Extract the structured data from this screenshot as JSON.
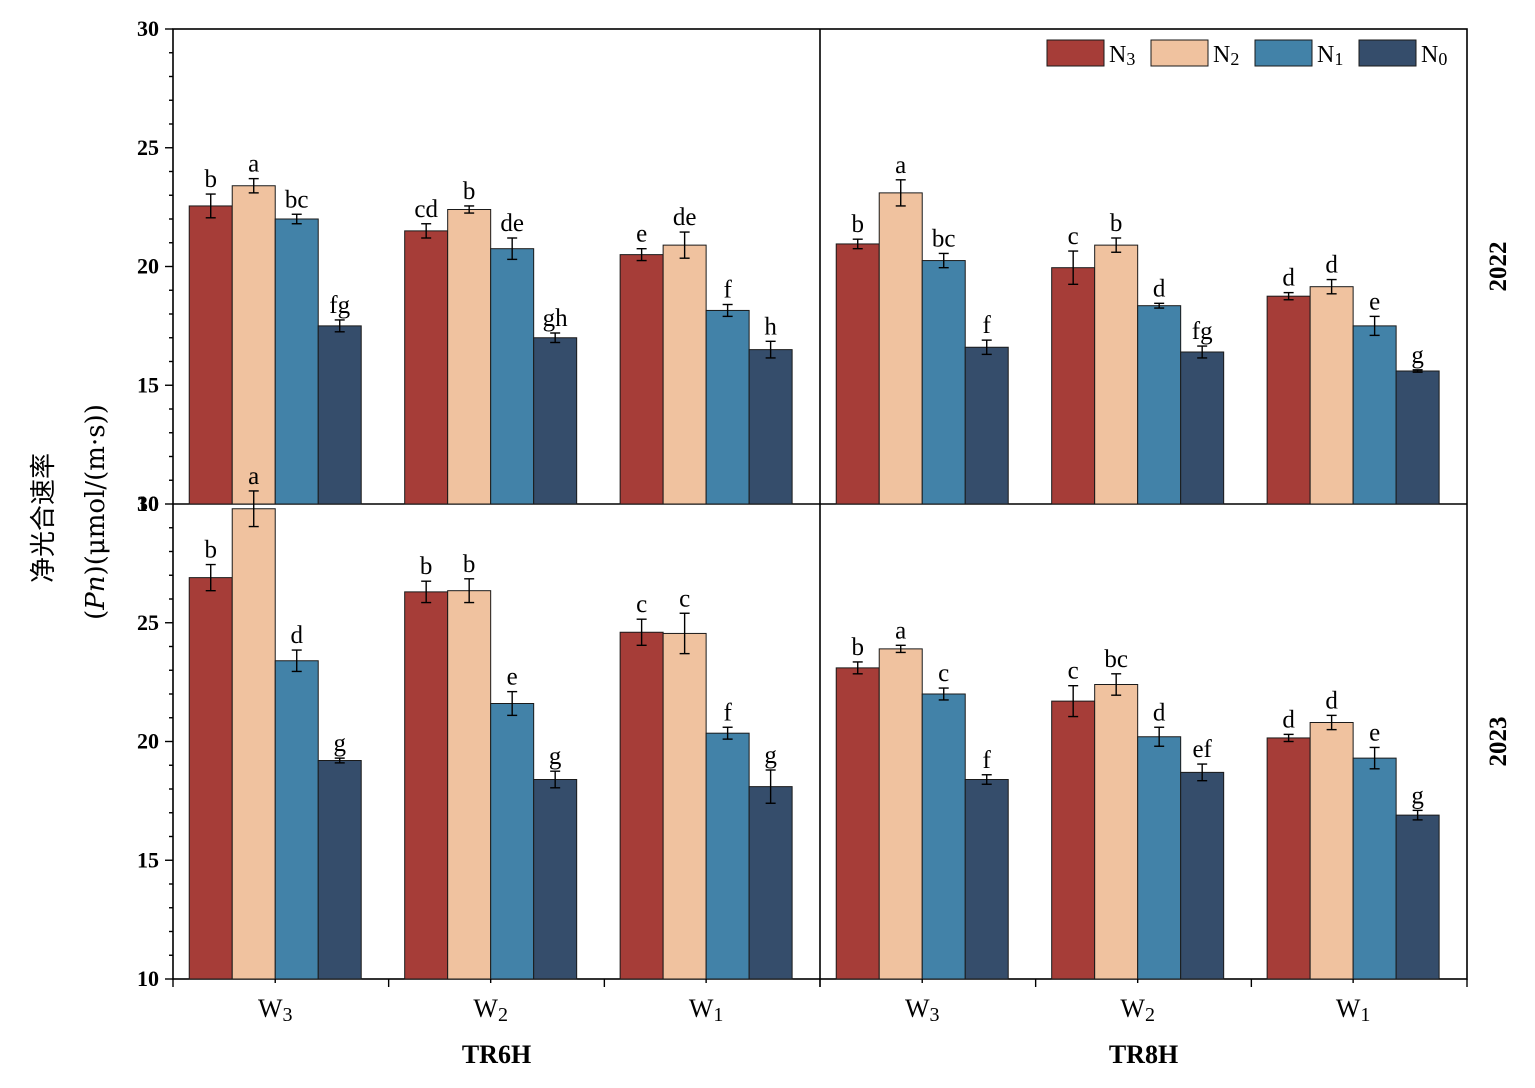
{
  "chart_data": {
    "type": "bar",
    "ylabel_line1": "净光合速率",
    "ylabel_line2_italic": "Pn",
    "ylabel_line2_unit": "(μmol/(m·s))",
    "ylim": [
      10,
      30
    ],
    "yticks": [
      "10",
      "15",
      "20",
      "25",
      "30"
    ],
    "legend_position": "top-right",
    "series": [
      {
        "name": "N",
        "sub": "3",
        "color": "#a63d38"
      },
      {
        "name": "N",
        "sub": "2",
        "color": "#f0c29f"
      },
      {
        "name": "N",
        "sub": "1",
        "color": "#4282a8"
      },
      {
        "name": "N",
        "sub": "0",
        "color": "#354d6b"
      }
    ],
    "categories": [
      {
        "name": "W",
        "sub": "3"
      },
      {
        "name": "W",
        "sub": "2"
      },
      {
        "name": "W",
        "sub": "1"
      }
    ],
    "groups": [
      "TR6H",
      "TR8H"
    ],
    "years": [
      "2022",
      "2023"
    ],
    "panels": [
      {
        "year": "2022",
        "group": "TR6H",
        "values": [
          [
            22.55,
            23.4,
            22.0,
            17.5
          ],
          [
            21.5,
            22.4,
            20.75,
            17.0
          ],
          [
            20.5,
            20.9,
            18.15,
            16.5
          ]
        ],
        "errors": [
          [
            0.5,
            0.3,
            0.2,
            0.25
          ],
          [
            0.3,
            0.15,
            0.45,
            0.2
          ],
          [
            0.25,
            0.55,
            0.25,
            0.35
          ]
        ],
        "letters": [
          [
            "b",
            "a",
            "bc",
            "fg"
          ],
          [
            "cd",
            "b",
            "de",
            "gh"
          ],
          [
            "e",
            "de",
            "f",
            "h"
          ]
        ]
      },
      {
        "year": "2022",
        "group": "TR8H",
        "values": [
          [
            20.95,
            23.1,
            20.25,
            16.6
          ],
          [
            19.95,
            20.9,
            18.35,
            16.4
          ],
          [
            18.75,
            19.15,
            17.5,
            15.6
          ]
        ],
        "errors": [
          [
            0.2,
            0.55,
            0.3,
            0.3
          ],
          [
            0.7,
            0.3,
            0.1,
            0.25
          ],
          [
            0.15,
            0.3,
            0.4,
            0.05
          ]
        ],
        "letters": [
          [
            "b",
            "a",
            "bc",
            "f"
          ],
          [
            "c",
            "b",
            "d",
            "fg"
          ],
          [
            "d",
            "d",
            "e",
            "g"
          ]
        ]
      },
      {
        "year": "2023",
        "group": "TR6H",
        "values": [
          [
            26.9,
            29.8,
            23.4,
            19.2
          ],
          [
            26.3,
            26.35,
            21.6,
            18.4
          ],
          [
            24.6,
            24.55,
            20.35,
            18.1
          ]
        ],
        "errors": [
          [
            0.55,
            0.75,
            0.45,
            0.1
          ],
          [
            0.45,
            0.5,
            0.5,
            0.35
          ],
          [
            0.55,
            0.85,
            0.25,
            0.7
          ]
        ],
        "letters": [
          [
            "b",
            "a",
            "d",
            "g"
          ],
          [
            "b",
            "b",
            "e",
            "g"
          ],
          [
            "c",
            "c",
            "f",
            "g"
          ]
        ]
      },
      {
        "year": "2023",
        "group": "TR8H",
        "values": [
          [
            23.1,
            23.9,
            22.0,
            18.4
          ],
          [
            21.7,
            22.4,
            20.2,
            18.7
          ],
          [
            20.15,
            20.8,
            19.3,
            16.9
          ]
        ],
        "errors": [
          [
            0.25,
            0.15,
            0.25,
            0.2
          ],
          [
            0.65,
            0.45,
            0.4,
            0.35
          ],
          [
            0.15,
            0.3,
            0.45,
            0.2
          ]
        ],
        "letters": [
          [
            "b",
            "a",
            "c",
            "f"
          ],
          [
            "c",
            "bc",
            "d",
            "ef"
          ],
          [
            "d",
            "d",
            "e",
            "g"
          ]
        ]
      }
    ]
  }
}
